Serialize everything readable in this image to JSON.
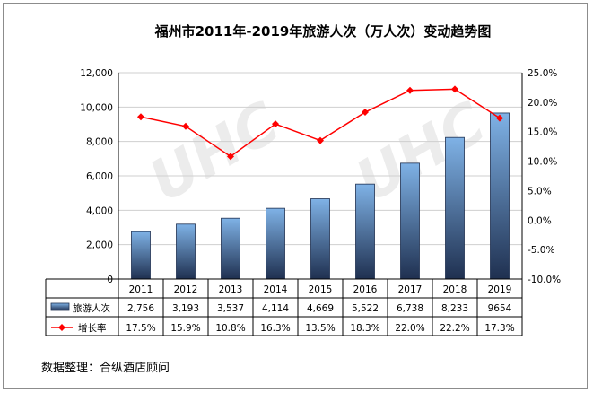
{
  "chart_data": {
    "type": "bar",
    "title": "福州市2011年-2019年旅游人次（万人次）变动趋势图",
    "categories": [
      "2011",
      "2012",
      "2013",
      "2014",
      "2015",
      "2016",
      "2017",
      "2018",
      "2019"
    ],
    "series": [
      {
        "name": "旅游人次",
        "type": "bar",
        "axis": "left",
        "values": [
          2756,
          3193,
          3537,
          4114,
          4669,
          5522,
          6738,
          8233,
          9654
        ],
        "labels": [
          "2,756",
          "3,193",
          "3,537",
          "4,114",
          "4,669",
          "5,522",
          "6,738",
          "8,233",
          "9654"
        ],
        "color": "#7fb2e6"
      },
      {
        "name": "增长率",
        "type": "line",
        "axis": "right",
        "values": [
          17.5,
          15.9,
          10.8,
          16.3,
          13.5,
          18.3,
          22.0,
          22.2,
          17.3
        ],
        "labels": [
          "17.5%",
          "15.9%",
          "10.8%",
          "16.3%",
          "13.5%",
          "18.3%",
          "22.0%",
          "22.2%",
          "17.3%"
        ],
        "color": "#ff0000"
      }
    ],
    "ylim": [
      0,
      12000
    ],
    "yticks": [
      "0",
      "2,000",
      "4,000",
      "6,000",
      "8,000",
      "10,000",
      "12,000"
    ],
    "y2lim": [
      -10,
      25
    ],
    "y2ticks": [
      "-10.0%",
      "-5.0%",
      "0.0%",
      "5.0%",
      "10.0%",
      "15.0%",
      "20.0%",
      "25.0%"
    ],
    "grid": true,
    "legend": "data-table-below",
    "watermark": "UHC 合纵酒店顾问 UNITED HOTEL"
  },
  "source_note": "数据整理：合纵酒店顾问"
}
